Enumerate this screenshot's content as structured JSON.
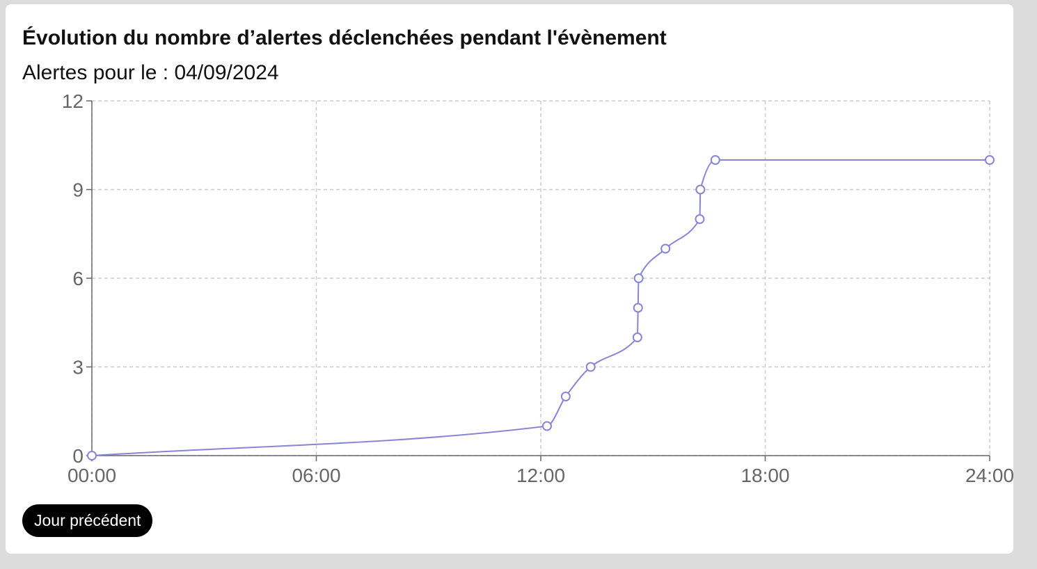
{
  "card": {
    "title": "Évolution du nombre d’alertes déclenchées pendant l'évènement",
    "subtitle": "Alertes pour le : 04/09/2024",
    "button_label": "Jour précédent"
  },
  "colors": {
    "line": "#8884d8",
    "grid": "#cccccc",
    "axis": "#666666",
    "button_bg": "#000000"
  },
  "chart_data": {
    "type": "line",
    "title": "",
    "xlabel": "",
    "ylabel": "",
    "x_ticks": [
      "00:00",
      "06:00",
      "12:00",
      "18:00",
      "24:00"
    ],
    "y_ticks": [
      "0",
      "3",
      "6",
      "9",
      "12"
    ],
    "xlim": [
      "00:00",
      "24:00"
    ],
    "ylim": [
      0,
      12
    ],
    "grid": true,
    "series": [
      {
        "x": [
          "00:00",
          "12:10",
          "12:40",
          "13:20",
          "14:35",
          "14:36",
          "14:37",
          "15:20",
          "16:15",
          "16:16",
          "16:40",
          "24:00"
        ],
        "values": [
          0,
          1,
          2,
          3,
          4,
          5,
          6,
          7,
          8,
          9,
          10,
          10
        ]
      }
    ]
  }
}
